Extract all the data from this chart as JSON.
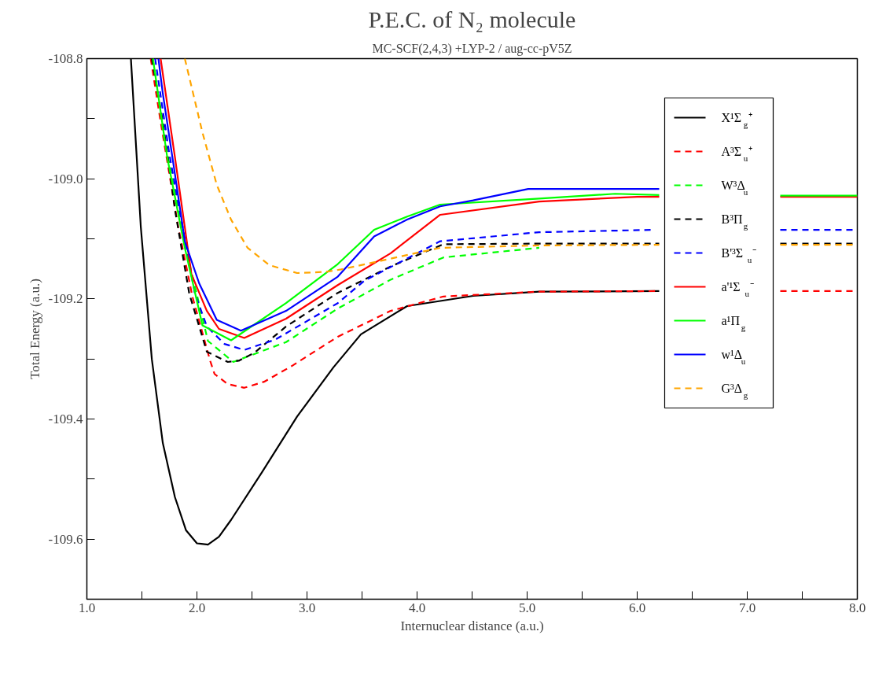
{
  "chart_data": {
    "type": "line",
    "title": "P.E.C. of N₂ molecule",
    "subtitle": "MC-SCF(2,4,3) +LYP-2 / aug-cc-pV5Z",
    "xlabel": "Internuclear distance (a.u.)",
    "ylabel": "Total Energy (a.u.)",
    "xlim": [
      1.0,
      8.0
    ],
    "ylim": [
      -109.7,
      -108.8
    ],
    "xticks": [
      {
        "value": 1.0,
        "label": "1.0"
      },
      {
        "value": 1.5,
        "label": null
      },
      {
        "value": 2.0,
        "label": "2.0"
      },
      {
        "value": 2.5,
        "label": null
      },
      {
        "value": 3.0,
        "label": "3.0"
      },
      {
        "value": 3.5,
        "label": null
      },
      {
        "value": 4.0,
        "label": "4.0"
      },
      {
        "value": 4.5,
        "label": null
      },
      {
        "value": 5.0,
        "label": "5.0"
      },
      {
        "value": 5.5,
        "label": null
      },
      {
        "value": 6.0,
        "label": "6.0"
      },
      {
        "value": 6.5,
        "label": null
      },
      {
        "value": 7.0,
        "label": "7.0"
      },
      {
        "value": 7.5,
        "label": null
      },
      {
        "value": 8.0,
        "label": "8.0"
      }
    ],
    "yticks": [
      {
        "value": -108.8,
        "label": "-108.8"
      },
      {
        "value": -108.9,
        "label": null
      },
      {
        "value": -109.0,
        "label": "-109.0"
      },
      {
        "value": -109.1,
        "label": null
      },
      {
        "value": -109.2,
        "label": "-109.2"
      },
      {
        "value": -109.3,
        "label": null
      },
      {
        "value": -109.4,
        "label": "-109.4"
      },
      {
        "value": -109.5,
        "label": null
      },
      {
        "value": -109.6,
        "label": "-109.6"
      }
    ],
    "grid": false,
    "legend": "top right",
    "marker": "none",
    "series": [
      {
        "name": "X¹Σ$_{g}$⁺",
        "color": "#000000",
        "line_style": "solid",
        "x": [
          1.4,
          1.49,
          1.59,
          1.69,
          1.8,
          1.9,
          2.0,
          2.1,
          2.2,
          2.31,
          2.59,
          2.91,
          3.24,
          3.49,
          3.91,
          4.51,
          5.11,
          6.2
        ],
        "values": [
          -108.8,
          -109.08,
          -109.3,
          -109.44,
          -109.53,
          -109.585,
          -109.607,
          -109.609,
          -109.596,
          -109.568,
          -109.489,
          -109.396,
          -109.314,
          -109.259,
          -109.212,
          -109.195,
          -109.188,
          -109.187
        ]
      },
      {
        "name": "A³Σ$_{u}$⁺",
        "color": "#ff0000",
        "line_style": "dashed",
        "x": [
          1.58,
          1.67,
          1.83,
          1.96,
          2.12,
          2.16,
          2.28,
          2.43,
          2.61,
          2.86,
          3.28,
          3.76,
          4.24,
          5.1,
          6.2,
          6.75,
          7.3,
          8.0
        ],
        "values": [
          -108.8,
          -108.905,
          -109.08,
          -109.197,
          -109.303,
          -109.325,
          -109.342,
          -109.348,
          -109.338,
          -109.312,
          -109.263,
          -109.22,
          -109.196,
          -109.188,
          -109.187,
          null,
          -109.187,
          -109.187
        ]
      },
      {
        "name": "W³Δ$_{u}$",
        "color": "#00ff00",
        "line_style": "dashed",
        "x": [
          1.6,
          1.7,
          1.93,
          2.1,
          2.33,
          2.81,
          3.28,
          3.76,
          4.24,
          5.11
        ],
        "values": [
          -108.8,
          -108.93,
          -109.14,
          -109.27,
          -109.305,
          -109.272,
          -109.216,
          -109.168,
          -109.131,
          -109.115
        ]
      },
      {
        "name": "B³Π$_{g}$",
        "color": "#000000",
        "line_style": "dashed",
        "x": [
          1.59,
          1.69,
          1.8,
          1.93,
          2.09,
          2.28,
          2.38,
          2.52,
          2.81,
          3.28,
          3.76,
          4.24,
          5.1,
          6.2,
          6.75,
          7.3,
          8.0
        ],
        "values": [
          -108.8,
          -108.905,
          -109.051,
          -109.191,
          -109.288,
          -109.305,
          -109.303,
          -109.29,
          -109.246,
          -109.19,
          -109.146,
          -109.109,
          -109.108,
          -109.108,
          null,
          -109.108,
          -109.108
        ]
      },
      {
        "name": "B'³Σ$_{u}$⁻",
        "color": "#0000ff",
        "line_style": "dashed",
        "x": [
          1.62,
          1.75,
          1.98,
          2.09,
          2.25,
          2.43,
          2.71,
          3.28,
          3.52,
          4.21,
          5.11,
          6.16,
          6.75,
          7.3,
          8.0
        ],
        "values": [
          -108.8,
          -108.96,
          -109.19,
          -109.246,
          -109.275,
          -109.285,
          -109.268,
          -109.207,
          -109.17,
          -109.104,
          -109.089,
          -109.085,
          null,
          -109.085,
          -109.085
        ]
      },
      {
        "name": "a'¹Σ$_{u}$⁻",
        "color": "#ff0000",
        "line_style": "solid",
        "x": [
          1.67,
          1.8,
          1.95,
          2.09,
          2.2,
          2.43,
          2.81,
          3.28,
          3.76,
          4.21,
          5.11,
          6.0,
          6.2,
          6.75,
          7.3,
          8.0
        ],
        "values": [
          -108.8,
          -108.964,
          -109.159,
          -109.22,
          -109.25,
          -109.265,
          -109.233,
          -109.177,
          -109.124,
          -109.06,
          -109.038,
          -109.03,
          -109.03,
          null,
          -109.03,
          -109.03
        ]
      },
      {
        "name": "a¹Π$_{g}$",
        "color": "#00ff00",
        "line_style": "solid",
        "x": [
          1.6,
          1.73,
          1.89,
          2.05,
          2.31,
          2.81,
          3.28,
          3.61,
          3.91,
          4.21,
          5.11,
          5.8,
          6.2,
          6.75,
          7.3,
          8.0
        ],
        "values": [
          -108.8,
          -108.964,
          -109.115,
          -109.244,
          -109.269,
          -109.207,
          -109.142,
          -109.085,
          -109.063,
          -109.043,
          -109.033,
          -109.025,
          -109.027,
          null,
          -109.028,
          -109.028
        ]
      },
      {
        "name": "w¹Δ$_{u}$",
        "color": "#0000ff",
        "line_style": "solid",
        "x": [
          1.65,
          1.69,
          1.8,
          1.89,
          2.02,
          2.18,
          2.4,
          2.81,
          3.28,
          3.61,
          3.91,
          4.21,
          4.51,
          5.01,
          6.2
        ],
        "values": [
          -108.8,
          -108.858,
          -108.992,
          -109.104,
          -109.174,
          -109.235,
          -109.253,
          -109.22,
          -109.163,
          -109.096,
          -109.068,
          -109.046,
          -109.036,
          -109.017,
          -109.017
        ]
      },
      {
        "name": "G³Δ$_{g}$",
        "color": "#ffa500",
        "line_style": "dashed",
        "x": [
          1.89,
          2.05,
          2.18,
          2.31,
          2.46,
          2.66,
          2.91,
          3.17,
          3.31,
          4.21,
          5.11,
          6.2,
          6.75,
          7.3,
          8.0
        ],
        "values": [
          -108.8,
          -108.923,
          -109.01,
          -109.068,
          -109.115,
          -109.144,
          -109.157,
          -109.155,
          -109.151,
          -109.115,
          -109.111,
          -109.11,
          null,
          -109.11,
          -109.11
        ]
      }
    ]
  }
}
